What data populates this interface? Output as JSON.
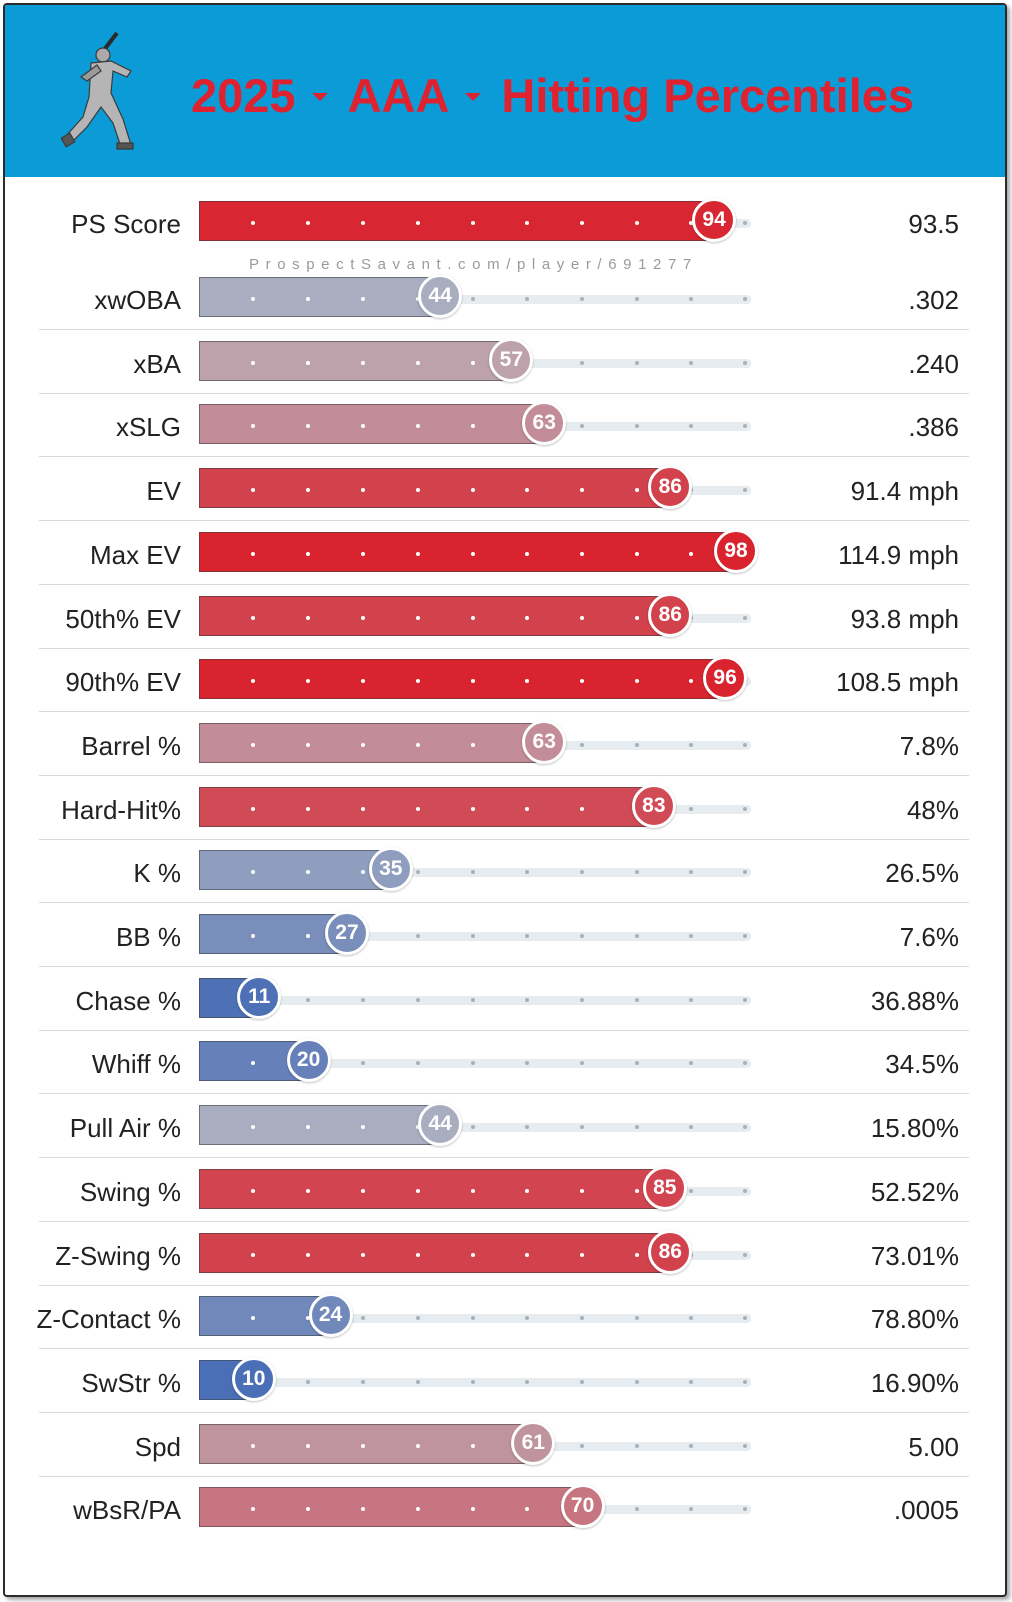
{
  "header": {
    "year": "2025",
    "level": "AAA",
    "title": "Hitting Percentiles",
    "logo_icon": "batter-silhouette-icon"
  },
  "watermark": "ProspectSavant.com/player/691277",
  "colors": {
    "header_bg": "#0b9bd6",
    "title": "#df2230",
    "high": "#d9242f",
    "mid": "#b8b8c2",
    "low": "#4b6fb6"
  },
  "chart_data": {
    "type": "bar",
    "title": "2025 AAA Hitting Percentiles",
    "xlim": [
      0,
      100
    ],
    "metrics": [
      {
        "label": "PS Score",
        "percentile": 94,
        "value": "93.5"
      },
      {
        "label": "xwOBA",
        "percentile": 44,
        "value": ".302"
      },
      {
        "label": "xBA",
        "percentile": 57,
        "value": ".240"
      },
      {
        "label": "xSLG",
        "percentile": 63,
        "value": ".386"
      },
      {
        "label": "EV",
        "percentile": 86,
        "value": "91.4 mph"
      },
      {
        "label": "Max EV",
        "percentile": 98,
        "value": "114.9 mph"
      },
      {
        "label": "50th% EV",
        "percentile": 86,
        "value": "93.8 mph"
      },
      {
        "label": "90th% EV",
        "percentile": 96,
        "value": "108.5 mph"
      },
      {
        "label": "Barrel %",
        "percentile": 63,
        "value": "7.8%"
      },
      {
        "label": "Hard-Hit%",
        "percentile": 83,
        "value": "48%"
      },
      {
        "label": "K %",
        "percentile": 35,
        "value": "26.5%"
      },
      {
        "label": "BB %",
        "percentile": 27,
        "value": "7.6%"
      },
      {
        "label": "Chase %",
        "percentile": 11,
        "value": "36.88%"
      },
      {
        "label": "Whiff %",
        "percentile": 20,
        "value": "34.5%"
      },
      {
        "label": "Pull Air %",
        "percentile": 44,
        "value": "15.80%"
      },
      {
        "label": "Swing %",
        "percentile": 85,
        "value": "52.52%"
      },
      {
        "label": "Z-Swing %",
        "percentile": 86,
        "value": "73.01%"
      },
      {
        "label": "Z-Contact %",
        "percentile": 24,
        "value": "78.80%"
      },
      {
        "label": "SwStr %",
        "percentile": 10,
        "value": "16.90%"
      },
      {
        "label": "Spd",
        "percentile": 61,
        "value": "5.00"
      },
      {
        "label": "wBsR/PA",
        "percentile": 70,
        "value": ".0005"
      }
    ]
  }
}
